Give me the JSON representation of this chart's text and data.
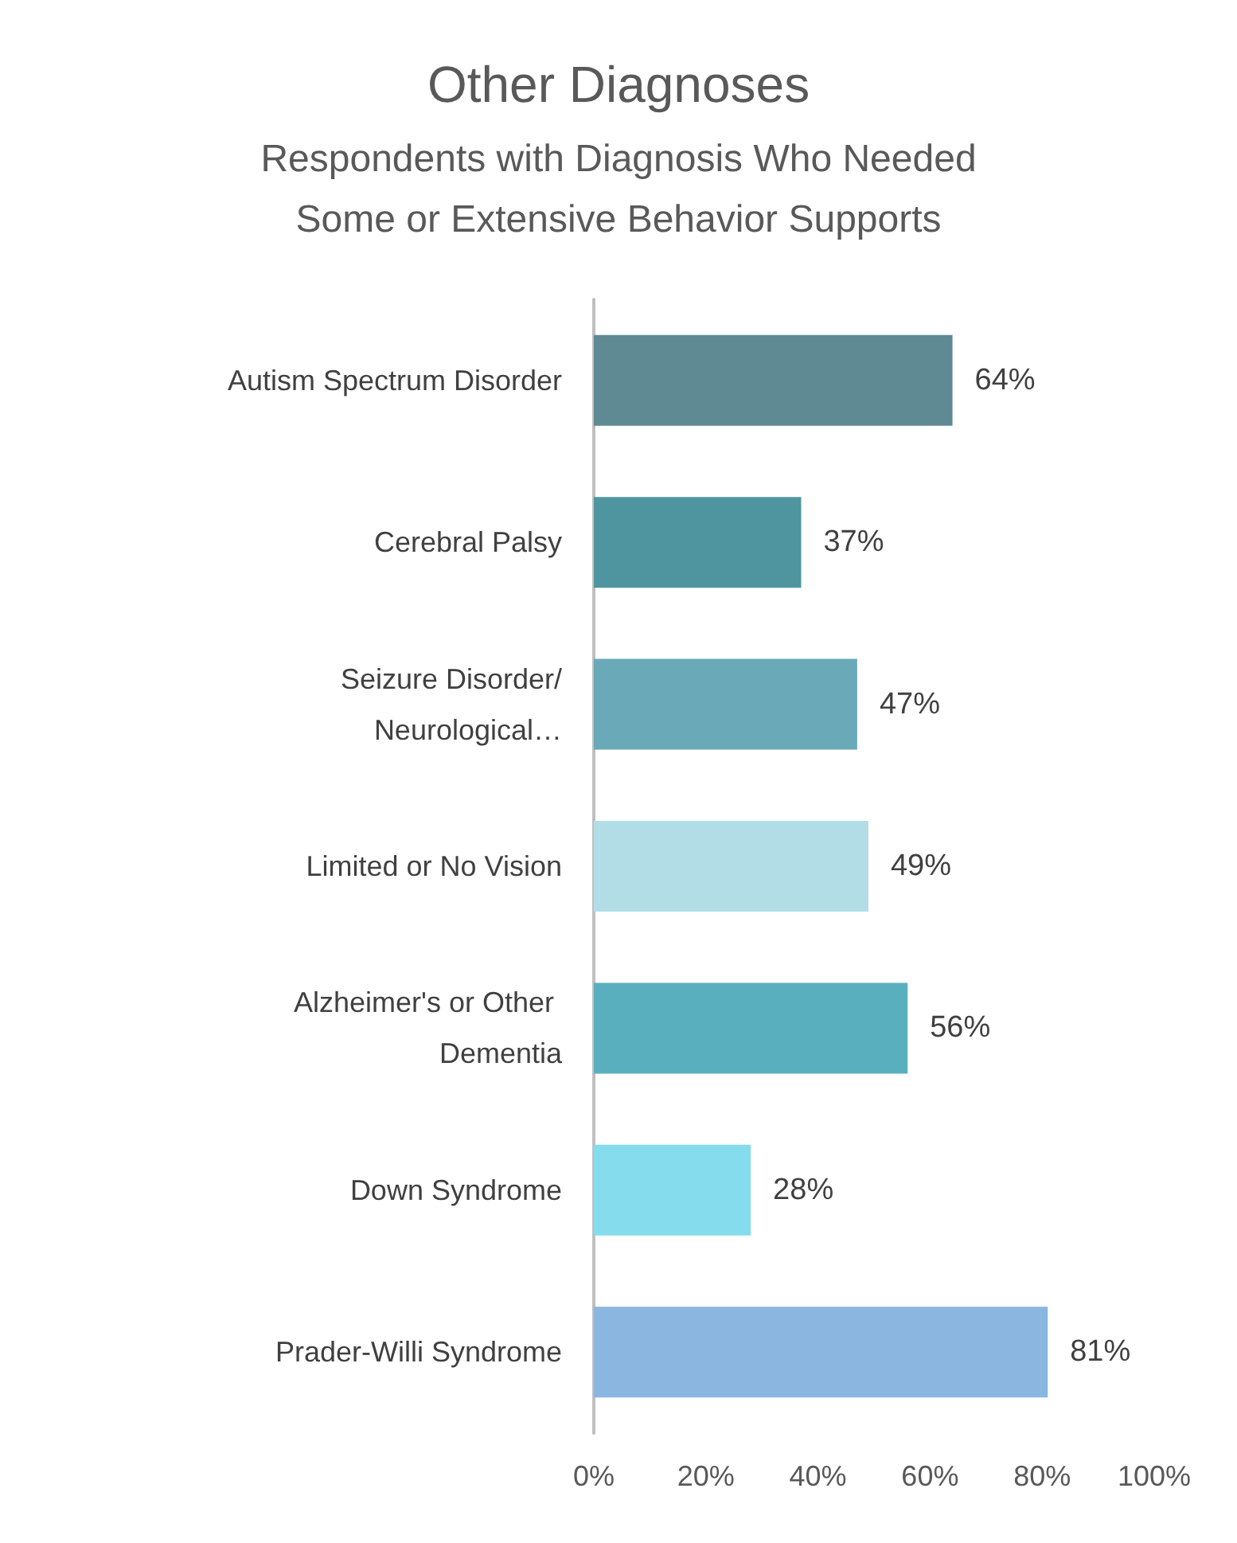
{
  "chart_data": {
    "type": "bar",
    "orientation": "horizontal",
    "title": "Other Diagnoses",
    "subtitle": "Respondents with Diagnosis Who Needed\nSome or Extensive Behavior Supports",
    "categories": [
      "Autism Spectrum Disorder",
      "Cerebral Palsy",
      "Seizure Disorder/Neurological…",
      "Limited or No Vision",
      "Alzheimer's or Other Dementia",
      "Down Syndrome",
      "Prader-Willi Syndrome"
    ],
    "values": [
      64,
      37,
      47,
      49,
      56,
      28,
      81
    ],
    "colors": [
      "#5f8a93",
      "#4f959f",
      "#6aaab8",
      "#b3dde6",
      "#5aafbe",
      "#84dcec",
      "#8ab6e0"
    ],
    "value_labels": [
      "64%",
      "37%",
      "47%",
      "49%",
      "56%",
      "28%",
      "81%"
    ],
    "xlim": [
      0,
      100
    ],
    "xticks": [
      {
        "value": 0,
        "label": "0%"
      },
      {
        "value": 20,
        "label": "20%"
      },
      {
        "value": 40,
        "label": "40%"
      },
      {
        "value": 60,
        "label": "60%"
      },
      {
        "value": 80,
        "label": "80%"
      },
      {
        "value": 100,
        "label": "100%"
      }
    ],
    "grid": false
  }
}
